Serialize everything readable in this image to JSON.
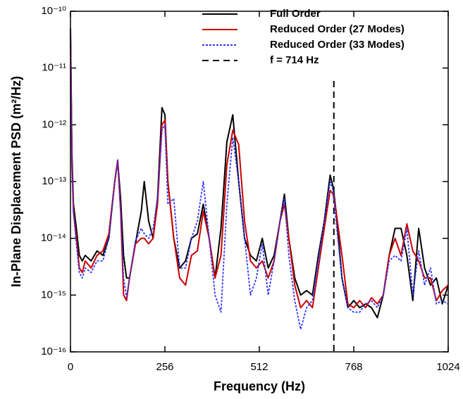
{
  "chart_data": {
    "type": "line",
    "x_label": "Frequency (Hz)",
    "y_label": "In-Plane Displacement PSD (m²/Hz)",
    "xlim": [
      0,
      1024
    ],
    "xticks": [
      0,
      256,
      512,
      768,
      1024
    ],
    "ylim": [
      1e-16,
      1e-10
    ],
    "yscale": "log",
    "yticks": [
      {
        "value": 1e-16,
        "label": "10⁻¹⁶"
      },
      {
        "value": 1e-15,
        "label": "10⁻¹⁵"
      },
      {
        "value": 1e-14,
        "label": "10⁻¹⁴"
      },
      {
        "value": 1e-13,
        "label": "10⁻¹³"
      },
      {
        "value": 1e-12,
        "label": "10⁻¹²"
      },
      {
        "value": 1e-11,
        "label": "10⁻¹¹"
      },
      {
        "value": 1e-10,
        "label": "10⁻¹⁰"
      }
    ],
    "legend": "top-right",
    "x": [
      0,
      4,
      8,
      16,
      24,
      32,
      40,
      56,
      72,
      88,
      104,
      120,
      128,
      136,
      144,
      152,
      160,
      176,
      192,
      200,
      212,
      224,
      236,
      248,
      256,
      264,
      280,
      296,
      312,
      328,
      344,
      360,
      376,
      392,
      408,
      424,
      440,
      456,
      472,
      488,
      504,
      520,
      536,
      552,
      568,
      580,
      592,
      608,
      624,
      640,
      656,
      672,
      688,
      704,
      712,
      720,
      736,
      752,
      768,
      784,
      800,
      816,
      832,
      848,
      864,
      880,
      896,
      912,
      928,
      944,
      960,
      976,
      992,
      1008,
      1024
    ],
    "series": [
      {
        "name": "Full Order",
        "color": "#000000",
        "dash": "solid",
        "values": [
          5e-11,
          3e-13,
          4e-14,
          1.5e-14,
          5e-15,
          4e-15,
          5e-15,
          4e-15,
          6e-15,
          5e-15,
          1e-14,
          1e-13,
          2.3e-13,
          5e-14,
          5e-15,
          2e-15,
          2e-15,
          8e-15,
          3e-14,
          1e-13,
          2e-14,
          1e-14,
          5e-14,
          2e-12,
          1.5e-12,
          1e-13,
          1e-14,
          3e-15,
          4e-15,
          1e-14,
          1.2e-14,
          4e-14,
          1e-14,
          2e-15,
          1.5e-14,
          5e-13,
          1.5e-12,
          1e-13,
          1e-14,
          5e-15,
          4e-15,
          1e-14,
          3e-15,
          5e-15,
          2e-14,
          6e-14,
          1e-14,
          2e-15,
          1e-15,
          1.2e-15,
          1e-15,
          5e-15,
          2e-14,
          1.3e-13,
          8e-14,
          3e-14,
          2e-15,
          6e-16,
          8e-16,
          6e-16,
          7e-16,
          6e-16,
          4e-16,
          1e-15,
          5e-15,
          1.5e-14,
          1.5e-14,
          5e-15,
          8e-16,
          1.5e-14,
          3e-15,
          1.5e-15,
          2e-15,
          7e-16,
          1.5e-15
        ]
      },
      {
        "name": "Reduced Order (27 Modes)",
        "color": "#cc0000",
        "dash": "solid",
        "values": [
          5e-11,
          2e-13,
          3e-14,
          1e-14,
          3e-15,
          2.5e-15,
          4e-15,
          3e-15,
          5e-15,
          6e-15,
          1.2e-14,
          1e-13,
          2.4e-13,
          3e-14,
          1e-15,
          8e-16,
          2e-15,
          8e-15,
          1e-14,
          1e-14,
          8e-15,
          1e-14,
          4e-14,
          1e-12,
          1.2e-12,
          1e-13,
          1e-14,
          2e-15,
          1.5e-15,
          5e-15,
          6e-15,
          3e-14,
          1e-14,
          2e-15,
          5e-15,
          2e-13,
          8e-13,
          4.5e-13,
          2e-14,
          4e-15,
          3e-15,
          4e-15,
          2e-15,
          4e-15,
          2e-14,
          4e-14,
          1e-14,
          1.5e-15,
          6e-16,
          8e-16,
          6e-16,
          3e-15,
          1.5e-14,
          7e-14,
          6e-14,
          3e-14,
          5e-15,
          7e-16,
          6e-16,
          8e-16,
          6e-16,
          9e-16,
          7e-16,
          1e-15,
          5e-15,
          1e-14,
          5e-15,
          1.8e-14,
          6e-15,
          4e-15,
          2e-15,
          2e-15,
          8e-16,
          1.2e-15,
          1.5e-15
        ]
      },
      {
        "name": "Reduced Order (33 Modes)",
        "color": "#3333ff",
        "dash": "dotted",
        "values": [
          5e-11,
          2e-13,
          3e-14,
          8e-15,
          2.5e-15,
          2e-15,
          3e-15,
          2.5e-15,
          4e-15,
          4e-15,
          1e-14,
          1e-13,
          2.3e-13,
          3e-14,
          2e-15,
          9e-16,
          2e-15,
          9e-15,
          1.5e-14,
          1.2e-14,
          1e-14,
          1.5e-14,
          5e-14,
          8e-13,
          1e-12,
          4e-14,
          5e-14,
          3e-15,
          3e-15,
          1e-14,
          2e-14,
          1e-13,
          1e-14,
          1e-15,
          5e-16,
          4e-14,
          6e-13,
          1e-13,
          1e-14,
          1e-15,
          2e-15,
          8e-15,
          1e-15,
          4e-15,
          2e-14,
          5e-14,
          5e-15,
          8e-16,
          2.5e-16,
          6e-16,
          8e-16,
          4e-15,
          2e-14,
          1e-13,
          7e-14,
          2e-14,
          2e-15,
          6e-16,
          5e-16,
          5e-16,
          7e-16,
          8e-16,
          6e-16,
          1e-15,
          4e-15,
          5e-15,
          4e-15,
          1.5e-14,
          1e-15,
          6e-15,
          1.5e-15,
          3e-15,
          7e-16,
          8e-16,
          7e-16
        ]
      }
    ],
    "reference_line": {
      "name": "f = 714 Hz",
      "x": 714,
      "color": "#000000",
      "dash": "dashed"
    }
  }
}
